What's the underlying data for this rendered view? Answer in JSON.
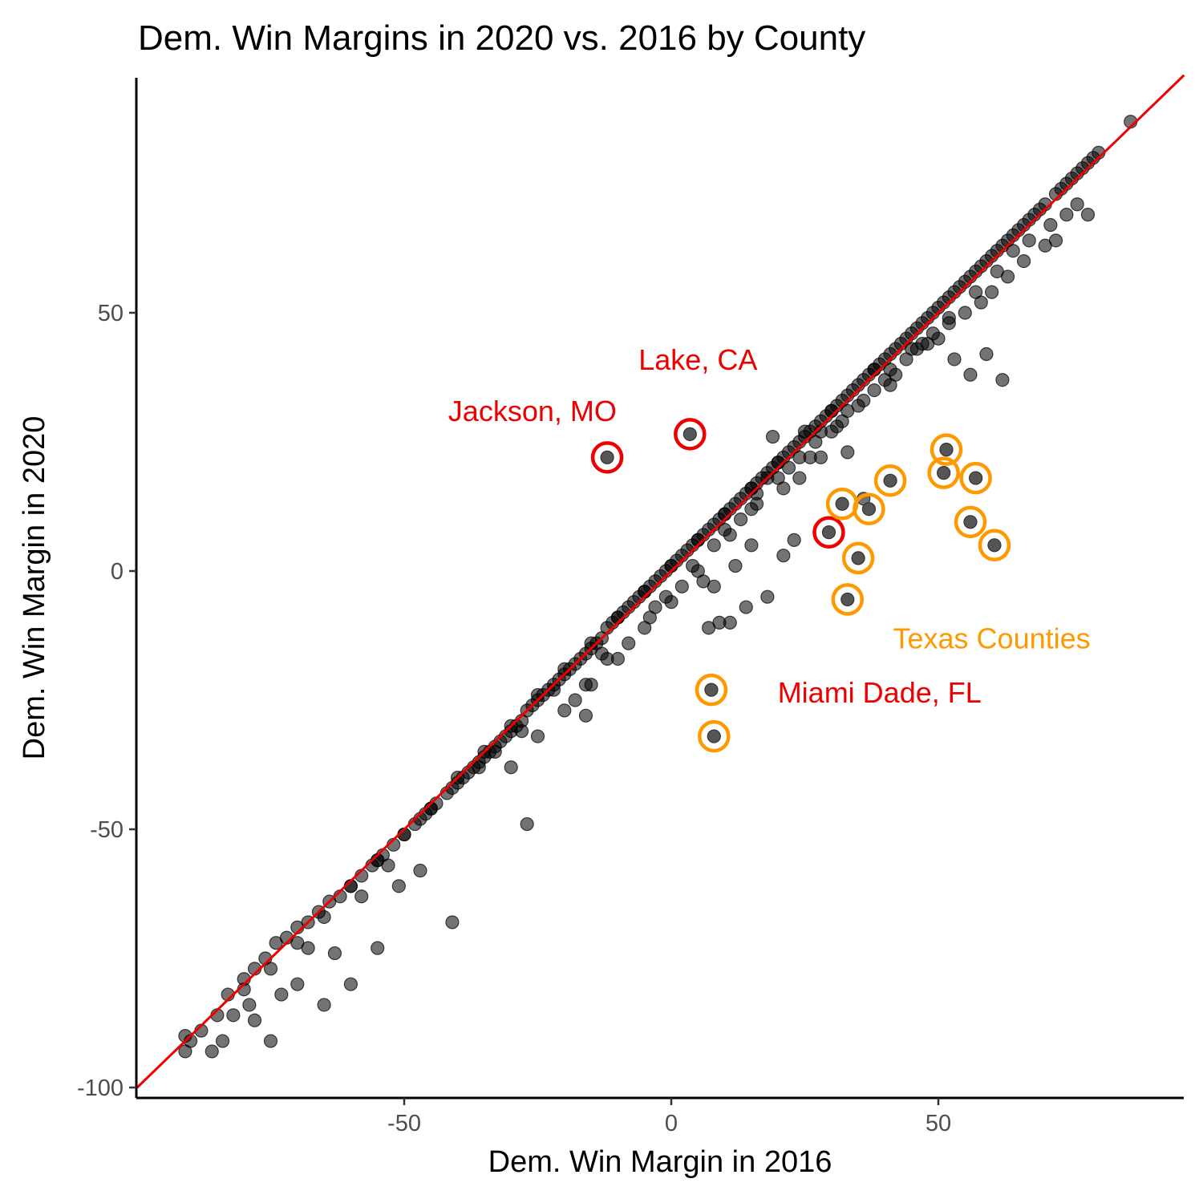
{
  "chart_data": {
    "type": "scatter",
    "title": "Dem. Win Margins in 2020 vs. 2016 by County",
    "xlabel": "Dem. Win Margin in 2016",
    "ylabel": "Dem. Win Margin in 2020",
    "xlim": [
      -100,
      95
    ],
    "ylim": [
      -101,
      96
    ],
    "xticks": [
      -50,
      0,
      50
    ],
    "xtick_labels": [
      "-50",
      "0",
      "50"
    ],
    "yticks": [
      -100,
      -50,
      0,
      50
    ],
    "ytick_labels": [
      "-100",
      "-50",
      "0",
      "50"
    ],
    "grid": false,
    "reference_line": {
      "type": "y = x",
      "color": "#ee0000"
    },
    "point_color": "#000000",
    "point_opacity": 0.55,
    "bulk_trend": {
      "note_values": "approximate representative sample of the county cloud",
      "x": [
        -90,
        -85,
        -80,
        -75,
        -70,
        -65,
        -60,
        -55,
        -50,
        -45,
        -40,
        -35,
        -30,
        -25,
        -20,
        -15,
        -10,
        -5,
        0,
        5,
        10,
        15,
        20,
        25,
        30
      ],
      "y": [
        -91,
        -86,
        -81,
        -77,
        -72,
        -67,
        -61,
        -56,
        -51,
        -46,
        -40,
        -35,
        -30,
        -24,
        -19,
        -14,
        -9,
        -4,
        1,
        6,
        11,
        16,
        21,
        27,
        31
      ]
    },
    "points": {
      "x": [
        -91,
        -91,
        -88,
        -83,
        -82,
        -80,
        -78,
        -76,
        -74,
        -72,
        -70,
        -68,
        -66,
        -64,
        -62,
        -60,
        -58,
        -56,
        -55,
        -54,
        -52,
        -50,
        -48,
        -47,
        -46,
        -45,
        -44,
        -42,
        -41,
        -40,
        -39,
        -38,
        -37,
        -36,
        -35,
        -34,
        -33,
        -32,
        -31,
        -30,
        -29,
        -28,
        -27,
        -26,
        -25,
        -24,
        -23,
        -22,
        -21,
        -20,
        -19,
        -18,
        -17,
        -16,
        -15,
        -14,
        -13,
        -12,
        -11,
        -10,
        -9,
        -8,
        -7,
        -6,
        -5,
        -4,
        -3,
        -2,
        -1,
        0,
        1,
        2,
        3,
        4,
        5,
        6,
        7,
        8,
        9,
        10,
        11,
        12,
        13,
        14,
        15,
        16,
        17,
        18,
        19,
        20,
        21,
        22,
        23,
        24,
        25,
        26,
        27,
        28,
        29,
        30,
        31,
        32,
        33,
        34,
        35,
        36,
        37,
        38,
        39,
        40,
        41,
        42,
        43,
        44,
        45,
        46,
        47,
        48,
        49,
        50,
        51,
        52,
        53,
        54,
        55,
        56,
        57,
        58,
        59,
        60,
        61,
        62,
        63,
        64,
        65,
        66,
        67,
        68,
        69,
        70,
        72,
        73,
        74,
        75,
        76,
        77,
        78,
        79,
        80,
        86,
        -41,
        -55,
        -60,
        -65,
        -75,
        -30,
        -25,
        -20,
        -15,
        -10,
        -8,
        -5,
        0,
        2,
        5,
        6,
        8,
        10,
        13,
        15,
        16,
        18,
        20,
        22,
        24,
        27,
        28,
        30,
        32,
        33,
        35,
        38,
        40,
        42,
        44,
        46,
        48,
        50,
        52,
        55,
        58,
        60,
        63,
        66,
        70,
        72,
        76,
        78,
        7,
        9,
        11,
        14,
        -47,
        -51,
        -63,
        -70,
        -73,
        -78,
        -84,
        -86,
        -79,
        -68,
        -58,
        -53,
        -36,
        -33,
        -28,
        -22,
        -18,
        -16,
        -12,
        -3,
        4,
        11,
        16,
        21,
        26,
        31,
        36,
        41,
        47,
        52,
        57,
        61,
        64,
        67,
        71,
        74,
        38,
        45,
        49,
        53,
        56,
        59,
        62,
        41,
        33,
        36,
        28,
        24,
        23,
        21,
        18,
        -27,
        -16,
        -13,
        -4,
        -1,
        12,
        15,
        8,
        19
      ],
      "y": [
        -93,
        -90,
        -89,
        -82,
        -86,
        -79,
        -77,
        -75,
        -72,
        -71,
        -69,
        -68,
        -66,
        -64,
        -63,
        -61,
        -59,
        -57,
        -56,
        -55,
        -53,
        -51,
        -49,
        -48,
        -47,
        -46,
        -45,
        -43,
        -42,
        -41,
        -40,
        -39,
        -38,
        -37,
        -36,
        -35,
        -34,
        -33,
        -32,
        -31,
        -30,
        -29,
        -27,
        -26,
        -25,
        -24,
        -23,
        -22,
        -21,
        -20,
        -19,
        -18,
        -17,
        -16,
        -15,
        -14,
        -13,
        -11,
        -10,
        -9,
        -8,
        -7,
        -6,
        -5,
        -4,
        -3,
        -2,
        -1,
        0,
        1,
        2,
        3,
        4,
        5,
        6,
        7,
        8,
        9,
        10,
        11,
        12,
        13,
        14,
        15,
        16,
        17,
        18,
        19,
        20,
        21,
        22,
        23,
        24,
        25,
        26,
        27,
        28,
        29,
        30,
        31,
        32,
        33,
        34,
        35,
        36,
        37,
        38,
        39,
        40,
        41,
        42,
        43,
        44,
        45,
        46,
        47,
        48,
        49,
        50,
        51,
        52,
        53,
        54,
        55,
        56,
        57,
        58,
        59,
        60,
        61,
        62,
        63,
        64,
        65,
        66,
        67,
        68,
        69,
        70,
        71,
        73,
        74,
        75,
        76,
        77,
        78,
        79,
        80,
        81,
        87,
        -68,
        -73,
        -80,
        -84,
        -91,
        -38,
        -32,
        -27,
        -22,
        -17,
        -14,
        -11,
        -6,
        -3,
        0,
        -2,
        5,
        8,
        10,
        12,
        15,
        18,
        18,
        20,
        22,
        25,
        27,
        27,
        29,
        31,
        32,
        35,
        37,
        38,
        41,
        43,
        44,
        45,
        48,
        50,
        52,
        54,
        57,
        60,
        63,
        64,
        71,
        69,
        -11,
        -10,
        -10,
        -7,
        -58,
        -61,
        -74,
        -80,
        -82,
        -87,
        -91,
        -93,
        -84,
        -73,
        -63,
        -57,
        -38,
        -35,
        -31,
        -23,
        -25,
        -22,
        -17,
        -7,
        1,
        7,
        13,
        16,
        22,
        28,
        33,
        39,
        44,
        49,
        54,
        58,
        62,
        64,
        67,
        69,
        39,
        43,
        46,
        41,
        38,
        42,
        37,
        36,
        23,
        14,
        22,
        18,
        6,
        3,
        -5,
        -49,
        -28,
        -16,
        -9,
        -5,
        1,
        5,
        -3,
        26
      ]
    },
    "highlighted_red": [
      {
        "x": -12,
        "y": 22
      },
      {
        "x": 3.5,
        "y": 26.5
      },
      {
        "x": 29.5,
        "y": 7.5
      }
    ],
    "highlighted_orange": [
      {
        "x": 7.5,
        "y": -23
      },
      {
        "x": 8,
        "y": -32
      },
      {
        "x": 32,
        "y": 13
      },
      {
        "x": 37,
        "y": 12
      },
      {
        "x": 41,
        "y": 17.5
      },
      {
        "x": 35,
        "y": 2.5
      },
      {
        "x": 33,
        "y": -5.5
      },
      {
        "x": 51.5,
        "y": 23.5
      },
      {
        "x": 51,
        "y": 19
      },
      {
        "x": 57,
        "y": 18
      },
      {
        "x": 56,
        "y": 9.5
      },
      {
        "x": 60.5,
        "y": 5
      }
    ],
    "annotations": [
      {
        "text": "Lake, CA",
        "x": 5,
        "y": 39,
        "color": "#ee0000",
        "anchor": "middle"
      },
      {
        "text": "Jackson, MO",
        "x": -26,
        "y": 29,
        "color": "#ee0000",
        "anchor": "middle"
      },
      {
        "text": "Texas Counties",
        "x": 60,
        "y": -15,
        "color": "#ff9900",
        "anchor": "middle"
      },
      {
        "text": "Miami Dade, FL",
        "x": 39,
        "y": -25.5,
        "color": "#ee0000",
        "anchor": "middle"
      }
    ],
    "colors": {
      "red": "#ee0000",
      "orange": "#ff9900",
      "point": "#000000",
      "axis": "#000000"
    }
  }
}
